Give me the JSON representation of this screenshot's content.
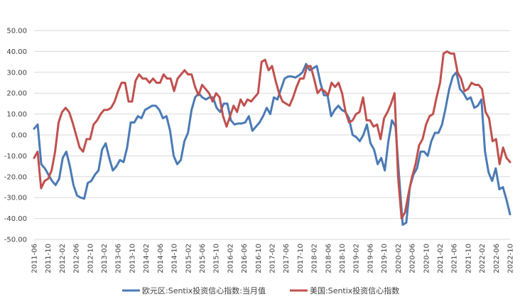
{
  "chart_data": {
    "type": "line",
    "ylim": [
      -50,
      50
    ],
    "yticks": [
      "50.00",
      "40.00",
      "30.00",
      "20.00",
      "10.00",
      "0.00",
      "-10.00",
      "-20.00",
      "-30.00",
      "-40.00",
      "-50.00"
    ],
    "x_start": "2011-06",
    "x_end": "2022-10",
    "xtick_labels": [
      "2011-06",
      "2011-10",
      "2012-02",
      "2012-06",
      "2012-10",
      "2013-02",
      "2013-06",
      "2013-10",
      "2014-02",
      "2014-06",
      "2014-10",
      "2015-02",
      "2015-06",
      "2015-10",
      "2016-02",
      "2016-06",
      "2016-10",
      "2017-02",
      "2017-06",
      "2017-10",
      "2018-02",
      "2018-06",
      "2018-10",
      "2019-02",
      "2019-06",
      "2019-10",
      "2020-02",
      "2020-06",
      "2020-10",
      "2021-02",
      "2021-06",
      "2021-10",
      "2022-02",
      "2022-06",
      "2022-10"
    ],
    "grid": true,
    "legend_position": "bottom",
    "series": [
      {
        "name": "欧元区:Sentix投资信心指数:当月值",
        "color": "#4a7ab5",
        "values": [
          3,
          5,
          -14,
          -16,
          -19,
          -22,
          -24,
          -21,
          -11,
          -8,
          -15,
          -24,
          -29,
          -30,
          -30.5,
          -23,
          -22,
          -19,
          -17,
          -7,
          -4,
          -11,
          -17,
          -15,
          -12,
          -13,
          -6,
          6,
          6,
          9,
          8,
          12,
          13,
          14,
          14,
          12,
          8,
          9,
          2,
          -10,
          -14,
          -12,
          -3,
          1,
          12,
          18,
          20,
          18,
          17,
          18,
          18,
          13,
          11,
          15,
          15,
          7,
          5,
          5.5,
          5.5,
          6,
          9,
          2,
          4,
          6,
          9,
          13,
          10,
          18,
          17,
          22,
          27,
          28,
          28,
          27.5,
          28.5,
          30,
          34,
          31,
          32,
          33,
          25,
          19,
          19,
          9,
          12,
          14,
          12,
          11,
          8,
          0,
          -1,
          -3,
          0,
          5,
          -4,
          -7,
          -14,
          -11,
          -17,
          -3,
          7,
          4,
          -20,
          -43,
          -42,
          -25,
          -19,
          -16,
          -8,
          -8,
          -10,
          -3,
          1,
          1,
          5,
          13,
          22,
          28,
          30,
          22,
          20,
          17,
          18,
          13,
          14,
          17,
          -8,
          -18,
          -22,
          -16,
          -26,
          -25,
          -31,
          -38
        ]
      },
      {
        "name": "美国:Sentix投资信心指数",
        "color": "#c0504d",
        "values": [
          -11,
          -8,
          -25.5,
          -22,
          -21,
          -17,
          -8,
          6,
          11,
          13,
          11,
          6,
          0,
          -6,
          -8,
          -2,
          -2,
          5,
          7,
          10,
          12,
          12,
          13,
          16,
          21,
          25,
          25,
          16,
          16,
          26,
          29,
          27,
          27,
          25,
          27,
          25,
          25,
          29,
          27,
          27,
          21,
          27,
          29,
          31,
          29,
          29,
          23,
          19,
          24,
          22,
          20,
          16,
          20,
          18,
          9,
          4,
          9,
          14,
          11,
          17,
          14,
          17,
          16,
          18,
          20,
          35,
          36,
          31,
          33,
          26,
          20,
          16,
          15,
          14,
          18,
          23,
          27,
          27,
          33,
          33,
          27,
          20,
          22,
          21,
          19,
          25,
          23,
          25,
          20,
          11,
          6,
          7,
          10,
          11,
          18,
          7,
          7,
          4,
          5,
          -2,
          8,
          11,
          15,
          20,
          -20,
          -40,
          -37,
          -28,
          -20,
          -14,
          -5,
          -2,
          5,
          9,
          10,
          18,
          25,
          39,
          40,
          39,
          39,
          30,
          27,
          21,
          22,
          25,
          24,
          24,
          22,
          11,
          8,
          -3,
          -2,
          -14,
          -6,
          -11,
          -13
        ]
      }
    ]
  }
}
